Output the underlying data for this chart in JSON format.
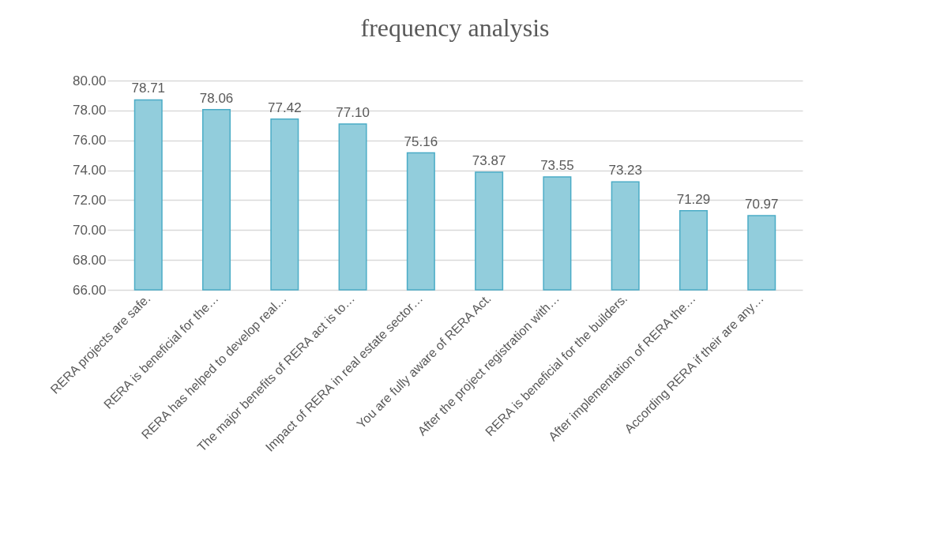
{
  "chart_data": {
    "type": "bar",
    "title": "frequency analysis",
    "categories": [
      "RERA projects are safe.",
      "RERA is beneficial for the…",
      "RERA has helped to develop real…",
      "The major benefits of RERA act is to…",
      "Impact of RERA in real estate sector…",
      "You are fully aware of RERA Act.",
      "After the project registration with…",
      "RERA is beneficial for the builders.",
      "After implementation of RERA the…",
      "According RERA if their are any…"
    ],
    "values": [
      78.71,
      78.06,
      77.42,
      77.1,
      75.16,
      73.87,
      73.55,
      73.23,
      71.29,
      70.97
    ],
    "value_labels": [
      "78.71",
      "78.06",
      "77.42",
      "77.10",
      "75.16",
      "73.87",
      "73.55",
      "73.23",
      "71.29",
      "70.97"
    ],
    "color": "#92cddc",
    "ylim": [
      66,
      80
    ],
    "yticks": [
      {
        "value": 66,
        "label": "66.00"
      },
      {
        "value": 68,
        "label": "68.00"
      },
      {
        "value": 70,
        "label": "70.00"
      },
      {
        "value": 72,
        "label": "72.00"
      },
      {
        "value": 74,
        "label": "74.00"
      },
      {
        "value": 76,
        "label": "76.00"
      },
      {
        "value": 78,
        "label": "78.00"
      },
      {
        "value": 80,
        "label": "80.00"
      }
    ],
    "grid": "y"
  }
}
